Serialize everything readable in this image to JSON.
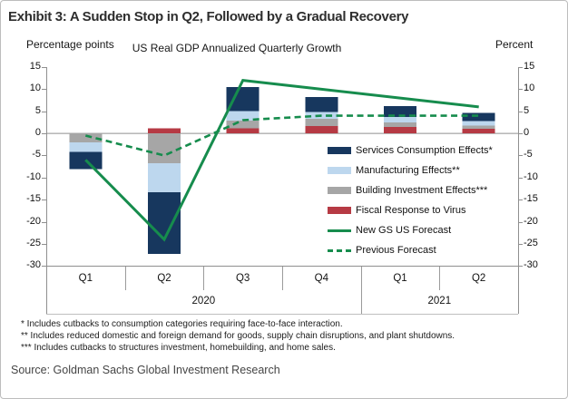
{
  "header": {
    "title": "Exhibit 3: A Sudden Stop in Q2, Followed by a Gradual Recovery"
  },
  "chart_data": {
    "type": "bar",
    "subtype": "stacked-bars-with-lines",
    "title": "US Real GDP Annualized Quarterly Growth",
    "left_axis_label": "Percentage points",
    "right_axis_label": "Percent",
    "ylim": [
      -30,
      15
    ],
    "y_ticks": [
      15,
      10,
      5,
      0,
      -5,
      -10,
      -15,
      -20,
      -25,
      -30
    ],
    "grid": "zero-line-only",
    "categories": [
      "Q1",
      "Q2",
      "Q3",
      "Q4",
      "Q1",
      "Q2"
    ],
    "year_groups": [
      {
        "label": "2020",
        "span": 4
      },
      {
        "label": "2021",
        "span": 2
      }
    ],
    "bar_series": [
      {
        "name": "Fiscal Response to Virus",
        "color": "#b63a44",
        "values": [
          0,
          1.2,
          1.2,
          1.7,
          1.5,
          1.0
        ]
      },
      {
        "name": "Building Investment Effects***",
        "color": "#a6a6a6",
        "values": [
          -2.0,
          -6.8,
          1.7,
          1.6,
          1.0,
          0.8
        ]
      },
      {
        "name": "Manufacturing Effects**",
        "color": "#bdd7ee",
        "values": [
          -2.2,
          -6.5,
          2.1,
          1.5,
          1.2,
          1.0
        ]
      },
      {
        "name": "Services Consumption Effects*",
        "color": "#17375e",
        "values": [
          -3.9,
          -14.0,
          5.5,
          3.4,
          2.5,
          1.8
        ]
      }
    ],
    "line_series": [
      {
        "name": "New GS US Forecast",
        "color": "#168c4d",
        "style": "solid",
        "values": [
          -6,
          -24,
          12,
          10,
          8,
          6
        ]
      },
      {
        "name": "Previous Forecast",
        "color": "#168c4d",
        "style": "dashed",
        "values": [
          -0.5,
          -5,
          3,
          4,
          4,
          4
        ]
      }
    ],
    "legend_position": "inside-right"
  },
  "legend": {
    "items": [
      {
        "label": "Services Consumption Effects*",
        "swatch": "bar",
        "color": "#17375e"
      },
      {
        "label": "Manufacturing Effects**",
        "swatch": "bar",
        "color": "#bdd7ee"
      },
      {
        "label": "Building Investment Effects***",
        "swatch": "bar",
        "color": "#a6a6a6"
      },
      {
        "label": "Fiscal Response to Virus",
        "swatch": "bar",
        "color": "#b63a44"
      },
      {
        "label": "New GS US Forecast",
        "swatch": "line-solid",
        "color": "#168c4d"
      },
      {
        "label": "Previous Forecast",
        "swatch": "line-dashed",
        "color": "#168c4d"
      }
    ]
  },
  "footnotes": [
    "* Includes cutbacks to consumption categories requiring face-to-face interaction.",
    "** Includes reduced domestic and foreign demand for goods, supply chain disruptions, and plant shutdowns.",
    "*** Includes cutbacks to structures investment, homebuilding, and home sales."
  ],
  "source": "Source: Goldman Sachs Global Investment Research"
}
